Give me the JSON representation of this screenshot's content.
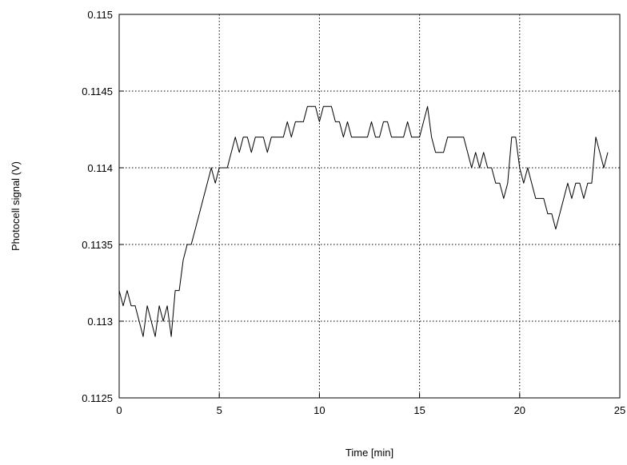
{
  "chart_data": {
    "type": "line",
    "title": "",
    "xlabel": "Time [min]",
    "ylabel": "Photocell signal (V)",
    "xlim": [
      0,
      25
    ],
    "ylim": [
      0.1125,
      0.115
    ],
    "grid": true,
    "x_ticks": [
      "0",
      "5",
      "10",
      "15",
      "20",
      "25"
    ],
    "y_ticks": [
      "0.1125",
      "0.113",
      "0.1135",
      "0.114",
      "0.1145",
      "0.115"
    ],
    "series": [
      {
        "color": "#000000",
        "points": [
          [
            0.0,
            0.1132
          ],
          [
            0.2,
            0.1131
          ],
          [
            0.4,
            0.1132
          ],
          [
            0.6,
            0.1131
          ],
          [
            0.8,
            0.1131
          ],
          [
            1.0,
            0.113
          ],
          [
            1.2,
            0.1129
          ],
          [
            1.4,
            0.1131
          ],
          [
            1.6,
            0.113
          ],
          [
            1.8,
            0.1129
          ],
          [
            2.0,
            0.1131
          ],
          [
            2.2,
            0.113
          ],
          [
            2.4,
            0.1131
          ],
          [
            2.6,
            0.1129
          ],
          [
            2.8,
            0.1132
          ],
          [
            3.0,
            0.1132
          ],
          [
            3.2,
            0.1134
          ],
          [
            3.4,
            0.1135
          ],
          [
            3.6,
            0.1135
          ],
          [
            3.8,
            0.1136
          ],
          [
            4.0,
            0.1137
          ],
          [
            4.2,
            0.1138
          ],
          [
            4.4,
            0.1139
          ],
          [
            4.6,
            0.114
          ],
          [
            4.8,
            0.1139
          ],
          [
            5.0,
            0.114
          ],
          [
            5.2,
            0.114
          ],
          [
            5.4,
            0.114
          ],
          [
            5.6,
            0.1141
          ],
          [
            5.8,
            0.1142
          ],
          [
            6.0,
            0.1141
          ],
          [
            6.2,
            0.1142
          ],
          [
            6.4,
            0.1142
          ],
          [
            6.6,
            0.1141
          ],
          [
            6.8,
            0.1142
          ],
          [
            7.0,
            0.1142
          ],
          [
            7.2,
            0.1142
          ],
          [
            7.4,
            0.1141
          ],
          [
            7.6,
            0.1142
          ],
          [
            7.8,
            0.1142
          ],
          [
            8.0,
            0.1142
          ],
          [
            8.2,
            0.1142
          ],
          [
            8.4,
            0.1143
          ],
          [
            8.6,
            0.1142
          ],
          [
            8.8,
            0.1143
          ],
          [
            9.0,
            0.1143
          ],
          [
            9.2,
            0.1143
          ],
          [
            9.4,
            0.1144
          ],
          [
            9.6,
            0.1144
          ],
          [
            9.8,
            0.1144
          ],
          [
            10.0,
            0.1143
          ],
          [
            10.2,
            0.1144
          ],
          [
            10.4,
            0.1144
          ],
          [
            10.6,
            0.1144
          ],
          [
            10.8,
            0.1143
          ],
          [
            11.0,
            0.1143
          ],
          [
            11.2,
            0.1142
          ],
          [
            11.4,
            0.1143
          ],
          [
            11.6,
            0.1142
          ],
          [
            11.8,
            0.1142
          ],
          [
            12.0,
            0.1142
          ],
          [
            12.2,
            0.1142
          ],
          [
            12.4,
            0.1142
          ],
          [
            12.6,
            0.1143
          ],
          [
            12.8,
            0.1142
          ],
          [
            13.0,
            0.1142
          ],
          [
            13.2,
            0.1143
          ],
          [
            13.4,
            0.1143
          ],
          [
            13.6,
            0.1142
          ],
          [
            13.8,
            0.1142
          ],
          [
            14.0,
            0.1142
          ],
          [
            14.2,
            0.1142
          ],
          [
            14.4,
            0.1143
          ],
          [
            14.6,
            0.1142
          ],
          [
            14.8,
            0.1142
          ],
          [
            15.0,
            0.1142
          ],
          [
            15.2,
            0.1143
          ],
          [
            15.4,
            0.1144
          ],
          [
            15.6,
            0.1142
          ],
          [
            15.8,
            0.1141
          ],
          [
            16.0,
            0.1141
          ],
          [
            16.2,
            0.1141
          ],
          [
            16.4,
            0.1142
          ],
          [
            16.6,
            0.1142
          ],
          [
            16.8,
            0.1142
          ],
          [
            17.0,
            0.1142
          ],
          [
            17.2,
            0.1142
          ],
          [
            17.4,
            0.1141
          ],
          [
            17.6,
            0.114
          ],
          [
            17.8,
            0.1141
          ],
          [
            18.0,
            0.114
          ],
          [
            18.2,
            0.1141
          ],
          [
            18.4,
            0.114
          ],
          [
            18.6,
            0.114
          ],
          [
            18.8,
            0.1139
          ],
          [
            19.0,
            0.1139
          ],
          [
            19.2,
            0.1138
          ],
          [
            19.4,
            0.1139
          ],
          [
            19.6,
            0.1142
          ],
          [
            19.8,
            0.1142
          ],
          [
            20.0,
            0.114
          ],
          [
            20.2,
            0.1139
          ],
          [
            20.4,
            0.114
          ],
          [
            20.6,
            0.1139
          ],
          [
            20.8,
            0.1138
          ],
          [
            21.0,
            0.1138
          ],
          [
            21.2,
            0.1138
          ],
          [
            21.4,
            0.1137
          ],
          [
            21.6,
            0.1137
          ],
          [
            21.8,
            0.1136
          ],
          [
            22.0,
            0.1137
          ],
          [
            22.2,
            0.1138
          ],
          [
            22.4,
            0.1139
          ],
          [
            22.6,
            0.1138
          ],
          [
            22.8,
            0.1139
          ],
          [
            23.0,
            0.1139
          ],
          [
            23.2,
            0.1138
          ],
          [
            23.4,
            0.1139
          ],
          [
            23.6,
            0.1139
          ],
          [
            23.8,
            0.1142
          ],
          [
            24.0,
            0.1141
          ],
          [
            24.2,
            0.114
          ],
          [
            24.4,
            0.1141
          ]
        ]
      }
    ]
  }
}
